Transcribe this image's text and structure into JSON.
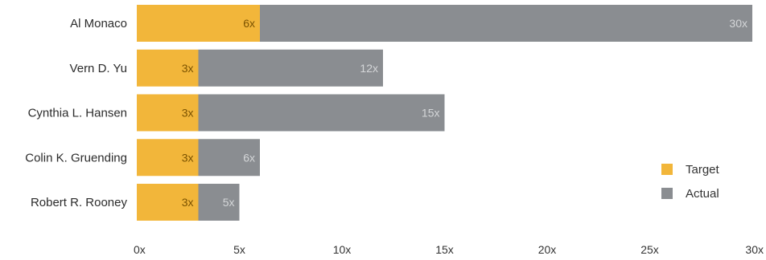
{
  "chart_data": {
    "type": "bar",
    "orientation": "horizontal",
    "stacked": true,
    "categories": [
      "Al Monaco",
      "Vern D. Yu",
      "Cynthia L. Hansen",
      "Colin K. Gruending",
      "Robert R. Rooney"
    ],
    "series": [
      {
        "name": "Target",
        "values": [
          6,
          3,
          3,
          3,
          3
        ],
        "labels": [
          "6x",
          "3x",
          "3x",
          "3x",
          "3x"
        ],
        "color": "#f2b63a",
        "label_color": "#7a5200"
      },
      {
        "name": "Actual",
        "total_values": [
          30,
          12,
          15,
          6,
          5
        ],
        "labels": [
          "30x",
          "12x",
          "15x",
          "6x",
          "5x"
        ],
        "color": "#8a8d91",
        "label_color": "#d4d6d8"
      }
    ],
    "xlim": [
      0,
      30
    ],
    "xticks": [
      0,
      5,
      10,
      15,
      20,
      25,
      30
    ],
    "xtick_labels": [
      "0x",
      "5x",
      "10x",
      "15x",
      "20x",
      "25x",
      "30x"
    ],
    "grid": false,
    "legend_position": "right"
  }
}
